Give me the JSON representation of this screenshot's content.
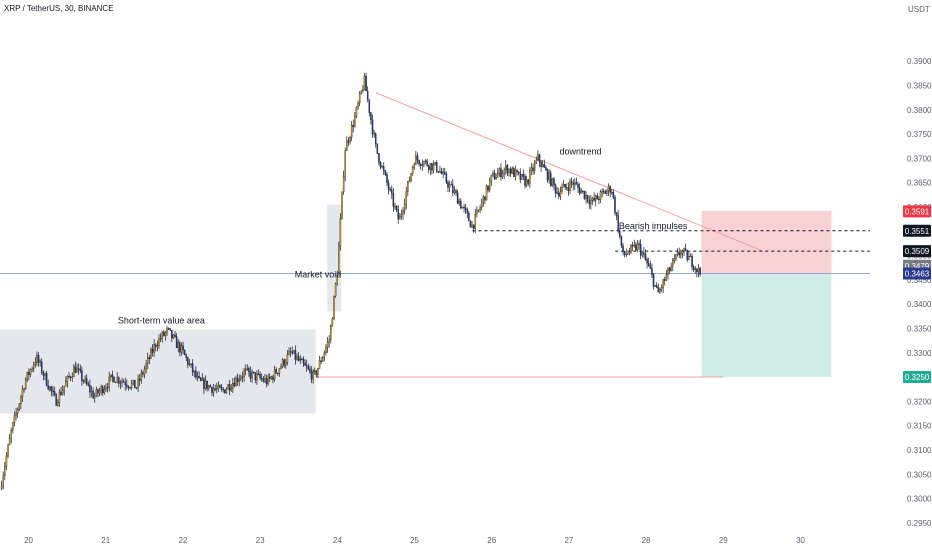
{
  "header": {
    "symbol": "XRP / TetherUS, 30, BINANCE"
  },
  "axis": {
    "unit": "USDT"
  },
  "chart_data": {
    "type": "candlestick",
    "title": "XRP / TetherUS, 30, BINANCE",
    "ylabel": "USDT",
    "ylim": [
      0.2925,
      0.3995
    ],
    "yticks": [
      "0.3900",
      "0.3850",
      "0.3800",
      "0.3750",
      "0.3700",
      "0.3650",
      "0.3600",
      "0.3550",
      "0.3500",
      "0.3450",
      "0.3400",
      "0.3350",
      "0.3300",
      "0.3250",
      "0.3200",
      "0.3150",
      "0.3100",
      "0.3050",
      "0.3000",
      "0.2950"
    ],
    "xticks": [
      "20",
      "21",
      "22",
      "23",
      "24",
      "25",
      "26",
      "27",
      "28",
      "29",
      "30"
    ],
    "xlim": [
      19.63,
      30.9
    ],
    "price_path": [
      [
        19.63,
        0.302
      ],
      [
        19.78,
        0.314
      ],
      [
        19.95,
        0.324
      ],
      [
        20.1,
        0.329
      ],
      [
        20.35,
        0.32
      ],
      [
        20.6,
        0.327
      ],
      [
        20.85,
        0.321
      ],
      [
        21.1,
        0.325
      ],
      [
        21.4,
        0.323
      ],
      [
        21.65,
        0.332
      ],
      [
        21.8,
        0.3345
      ],
      [
        22.0,
        0.33
      ],
      [
        22.2,
        0.324
      ],
      [
        22.5,
        0.322
      ],
      [
        22.8,
        0.326
      ],
      [
        23.1,
        0.324
      ],
      [
        23.4,
        0.33
      ],
      [
        23.7,
        0.325
      ],
      [
        23.9,
        0.333
      ],
      [
        24.0,
        0.347
      ],
      [
        24.1,
        0.372
      ],
      [
        24.22,
        0.378
      ],
      [
        24.35,
        0.386
      ],
      [
        24.5,
        0.372
      ],
      [
        24.8,
        0.357
      ],
      [
        25.0,
        0.37
      ],
      [
        25.3,
        0.368
      ],
      [
        25.55,
        0.362
      ],
      [
        25.75,
        0.356
      ],
      [
        26.0,
        0.366
      ],
      [
        26.2,
        0.368
      ],
      [
        26.45,
        0.365
      ],
      [
        26.6,
        0.37
      ],
      [
        26.85,
        0.363
      ],
      [
        27.05,
        0.365
      ],
      [
        27.3,
        0.361
      ],
      [
        27.55,
        0.364
      ],
      [
        27.7,
        0.35
      ],
      [
        27.9,
        0.352
      ],
      [
        28.05,
        0.347
      ],
      [
        28.15,
        0.342
      ],
      [
        28.3,
        0.347
      ],
      [
        28.45,
        0.351
      ],
      [
        28.58,
        0.349
      ],
      [
        28.7,
        0.3463
      ]
    ],
    "current_price": 0.3463,
    "annotations": [
      {
        "text": "Short-term value area",
        "x": 21.72,
        "y": 0.336
      },
      {
        "text": "Market void",
        "x": 23.75,
        "y": 0.3455
      },
      {
        "text": "downtrend",
        "x": 27.15,
        "y": 0.3708
      },
      {
        "text": "Bearish impulses",
        "x": 28.09,
        "y": 0.3555
      }
    ],
    "zones": [
      {
        "name": "value-area",
        "x": [
          19.63,
          23.72
        ],
        "y": [
          0.3175,
          0.3348
        ],
        "color": "#d1d4dc"
      },
      {
        "name": "market-void",
        "x": [
          23.87,
          24.05
        ],
        "y": [
          0.3385,
          0.3605
        ],
        "color": "#d1d4dc"
      },
      {
        "name": "stop-zone",
        "x": [
          28.72,
          30.4
        ],
        "y": [
          0.3463,
          0.3592
        ],
        "color": "#f7c9ce"
      },
      {
        "name": "target-zone",
        "x": [
          28.72,
          30.4
        ],
        "y": [
          0.325,
          0.3463
        ],
        "color": "#c8e9e3"
      }
    ],
    "lines": [
      {
        "name": "trendline",
        "from": [
          24.5,
          0.3835
        ],
        "to": [
          29.5,
          0.351
        ],
        "color": "#f0a0a8",
        "style": "solid"
      },
      {
        "name": "level-0.3551",
        "from": [
          25.75,
          0.3551
        ],
        "to": [
          30.9,
          0.3551
        ],
        "color": "#131722",
        "style": "dashed"
      },
      {
        "name": "level-0.3509",
        "from": [
          27.6,
          0.3509
        ],
        "to": [
          30.9,
          0.3509
        ],
        "color": "#131722",
        "style": "dashed"
      },
      {
        "name": "support-0.3250",
        "from": [
          23.72,
          0.325
        ],
        "to": [
          29.0,
          0.325
        ],
        "color": "#f0a0a8",
        "style": "solid"
      },
      {
        "name": "last-price",
        "from": [
          19.63,
          0.3463
        ],
        "to": [
          30.9,
          0.3463
        ],
        "color": "#9aa4d8",
        "style": "solid"
      }
    ],
    "price_labels": [
      {
        "text": "0.3591",
        "y": 0.3591,
        "color": "#f23645"
      },
      {
        "text": "0.3551",
        "y": 0.3551,
        "color": "#131722"
      },
      {
        "text": "0.3509",
        "y": 0.3509,
        "color": "#131722"
      },
      {
        "text": "0.3479",
        "y": 0.3479,
        "color": "#787b86"
      },
      {
        "text": "0.3463",
        "y": 0.3463,
        "color": "#2a3a8c"
      },
      {
        "text": "0.3250",
        "y": 0.325,
        "color": "#22ab94"
      }
    ]
  }
}
